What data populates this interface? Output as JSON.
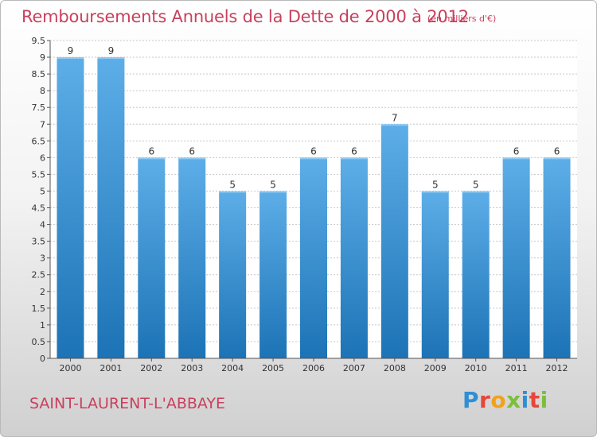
{
  "header": {
    "title": "Remboursements Annuels de la Dette de 2000 à 2012",
    "unit": "(en milliers d'€)"
  },
  "footer": {
    "town": "SAINT-LAURENT-L'ABBAYE",
    "logo_text": "Proxiti",
    "logo_colors": [
      "#2f8fd5",
      "#e8463a",
      "#f1a21b",
      "#7cbf3a",
      "#2f8fd5",
      "#e8463a",
      "#7cbf3a"
    ]
  },
  "colors": {
    "bar_light": "#5daee8",
    "bar_dark": "#1c73b5",
    "accent": "#c8415d",
    "grid": "#c8c8c8"
  },
  "chart_data": {
    "type": "bar",
    "title": "Remboursements Annuels de la Dette de 2000 à 2012",
    "ylabel": "(en milliers d'€)",
    "xlabel": "",
    "categories": [
      "2000",
      "2001",
      "2002",
      "2003",
      "2004",
      "2005",
      "2006",
      "2007",
      "2008",
      "2009",
      "2010",
      "2011",
      "2012"
    ],
    "values": [
      9,
      9,
      6,
      6,
      5,
      5,
      6,
      6,
      7,
      5,
      5,
      6,
      6
    ],
    "data_labels": [
      "9",
      "9",
      "6",
      "6",
      "5",
      "5",
      "6",
      "6",
      "7",
      "5",
      "5",
      "6",
      "6"
    ],
    "ylim": [
      0,
      9.5
    ],
    "yticks": [
      "0",
      "0.5",
      "1",
      "1.5",
      "2",
      "2.5",
      "3",
      "3.5",
      "4",
      "4.5",
      "5",
      "5.5",
      "6",
      "6.5",
      "7",
      "7.5",
      "8",
      "8.5",
      "9",
      "9.5"
    ],
    "grid": true,
    "legend": "none"
  }
}
